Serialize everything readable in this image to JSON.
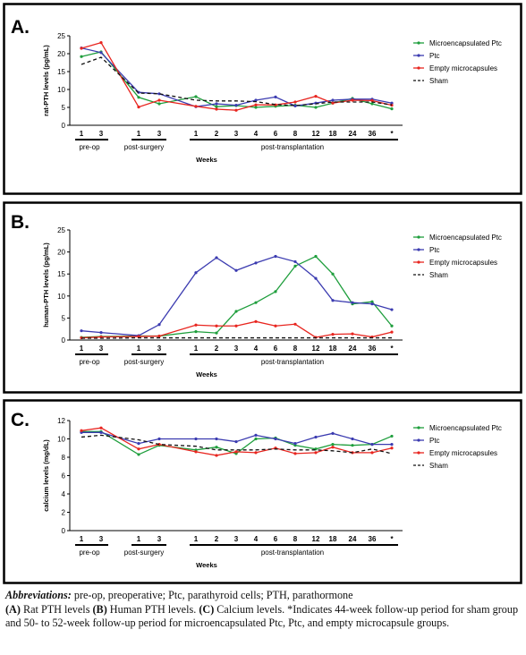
{
  "chart_data": [
    {
      "type": "line",
      "panel_label": "A.",
      "ylabel": "rat-PTH levels (pg/mL)",
      "xlabel": "Weeks",
      "ylim": [
        0,
        25
      ],
      "yticks": [
        0,
        5,
        10,
        15,
        20,
        25
      ],
      "x_ticks": [
        "1",
        "3",
        "1",
        "3",
        "1",
        "2",
        "3",
        "4",
        "6",
        "8",
        "12",
        "18",
        "24",
        "36",
        "*"
      ],
      "groups": [
        "pre-op",
        "post-surgery",
        "post-transplantation"
      ],
      "legend_position": "right",
      "series": [
        {
          "name": "Microencapsulated Ptc",
          "color": "#1e9e3c",
          "style": "solid",
          "values": [
            19.2,
            20.5,
            7.8,
            6.0,
            8.0,
            5.2,
            5.5,
            5.0,
            5.3,
            5.6,
            5.0,
            6.2,
            7.5,
            6.0,
            4.6
          ]
        },
        {
          "name": "Ptc",
          "color": "#3b3bb0",
          "style": "solid",
          "values": [
            21.6,
            20.3,
            9.2,
            8.8,
            5.2,
            6.0,
            5.6,
            7.0,
            7.9,
            5.4,
            6.2,
            7.0,
            7.3,
            7.3,
            6.2
          ]
        },
        {
          "name": "Empty microcapsules",
          "color": "#e8251f",
          "style": "solid",
          "values": [
            21.5,
            23.1,
            5.1,
            7.0,
            5.3,
            4.5,
            4.2,
            5.7,
            5.7,
            6.5,
            8.1,
            6.2,
            7.0,
            6.9,
            5.6
          ]
        },
        {
          "name": "Sham",
          "color": "#111111",
          "style": "dashed",
          "values": [
            17.0,
            19.0,
            9.0,
            8.8,
            7.0,
            6.8,
            6.8,
            6.6,
            5.8,
            5.5,
            6.0,
            6.5,
            6.5,
            6.5,
            5.7
          ]
        }
      ]
    },
    {
      "type": "line",
      "panel_label": "B.",
      "ylabel": "human-PTH levels (pg/mL)",
      "xlabel": "Weeks",
      "ylim": [
        0,
        25
      ],
      "yticks": [
        0,
        5,
        10,
        15,
        20,
        25
      ],
      "x_ticks": [
        "1",
        "3",
        "1",
        "3",
        "1",
        "2",
        "3",
        "4",
        "6",
        "8",
        "12",
        "18",
        "24",
        "36",
        "*"
      ],
      "groups": [
        "pre-op",
        "post-surgery",
        "post-transplantation"
      ],
      "legend_position": "right",
      "series": [
        {
          "name": "Microencapsulated Ptc",
          "color": "#1e9e3c",
          "style": "solid",
          "values": [
            0.6,
            0.8,
            0.9,
            0.9,
            1.9,
            1.6,
            6.5,
            8.5,
            11.0,
            16.8,
            19.0,
            15.0,
            8.2,
            8.7,
            3.2
          ]
        },
        {
          "name": "Ptc",
          "color": "#3b3bb0",
          "style": "solid",
          "values": [
            2.1,
            1.7,
            1.0,
            3.5,
            15.3,
            18.7,
            15.8,
            17.5,
            19.0,
            17.8,
            14.0,
            9.0,
            8.5,
            8.2,
            6.9
          ]
        },
        {
          "name": "Empty microcapsules",
          "color": "#e8251f",
          "style": "solid",
          "values": [
            0.5,
            0.7,
            0.8,
            0.9,
            3.4,
            3.2,
            3.2,
            4.2,
            3.2,
            3.6,
            0.6,
            1.3,
            1.4,
            0.7,
            1.8
          ]
        },
        {
          "name": "Sham",
          "color": "#111111",
          "style": "dashed",
          "values": [
            0.4,
            0.4,
            0.5,
            0.5,
            0.5,
            0.5,
            0.5,
            0.5,
            0.5,
            0.5,
            0.5,
            0.5,
            0.5,
            0.5,
            0.5
          ]
        }
      ]
    },
    {
      "type": "line",
      "panel_label": "C.",
      "ylabel": "calcium levels (mg/dL)",
      "xlabel": "Weeks",
      "ylim": [
        0,
        12
      ],
      "yticks": [
        0,
        2,
        4,
        6,
        8,
        10,
        12
      ],
      "x_ticks": [
        "1",
        "3",
        "1",
        "3",
        "1",
        "2",
        "3",
        "4",
        "6",
        "8",
        "12",
        "18",
        "24",
        "36",
        "*"
      ],
      "groups": [
        "pre-op",
        "post-surgery",
        "post-transplantation"
      ],
      "legend_position": "right",
      "series": [
        {
          "name": "Microencapsulated Ptc",
          "color": "#1e9e3c",
          "style": "solid",
          "values": [
            10.8,
            10.8,
            8.3,
            9.3,
            8.8,
            9.1,
            8.4,
            10.0,
            10.1,
            9.3,
            8.9,
            9.4,
            9.3,
            9.4,
            10.3
          ]
        },
        {
          "name": "Ptc",
          "color": "#3b3bb0",
          "style": "solid",
          "values": [
            10.7,
            10.7,
            9.5,
            10.0,
            10.0,
            10.0,
            9.7,
            10.4,
            10.0,
            9.5,
            10.2,
            10.6,
            10.0,
            9.4,
            9.4
          ]
        },
        {
          "name": "Empty microcapsules",
          "color": "#e8251f",
          "style": "solid",
          "values": [
            10.9,
            11.2,
            8.9,
            9.4,
            8.6,
            8.2,
            8.6,
            8.5,
            9.0,
            8.4,
            8.5,
            9.1,
            8.5,
            8.5,
            9.0
          ]
        },
        {
          "name": "Sham",
          "color": "#111111",
          "style": "dashed",
          "values": [
            10.2,
            10.4,
            9.9,
            9.4,
            9.2,
            8.8,
            8.8,
            8.8,
            8.9,
            8.8,
            8.8,
            8.7,
            8.5,
            8.9,
            8.4
          ]
        }
      ]
    }
  ],
  "caption": {
    "abbr_title": "Abbreviations:",
    "abbr_text": " pre-op, preoperative; Ptc, parathyroid cells; PTH, parathormone",
    "panel_a_label": "(A)",
    "panel_a_text": " Rat PTH levels ",
    "panel_b_label": "(B)",
    "panel_b_text": " Human PTH levels. ",
    "panel_c_label": "(C)",
    "panel_c_text": " Calcium levels. *Indicates 44-week follow-up period for sham group and 50- to 52-week follow-up period for microencapsulated Ptc, Ptc, and empty microcapsule groups."
  }
}
